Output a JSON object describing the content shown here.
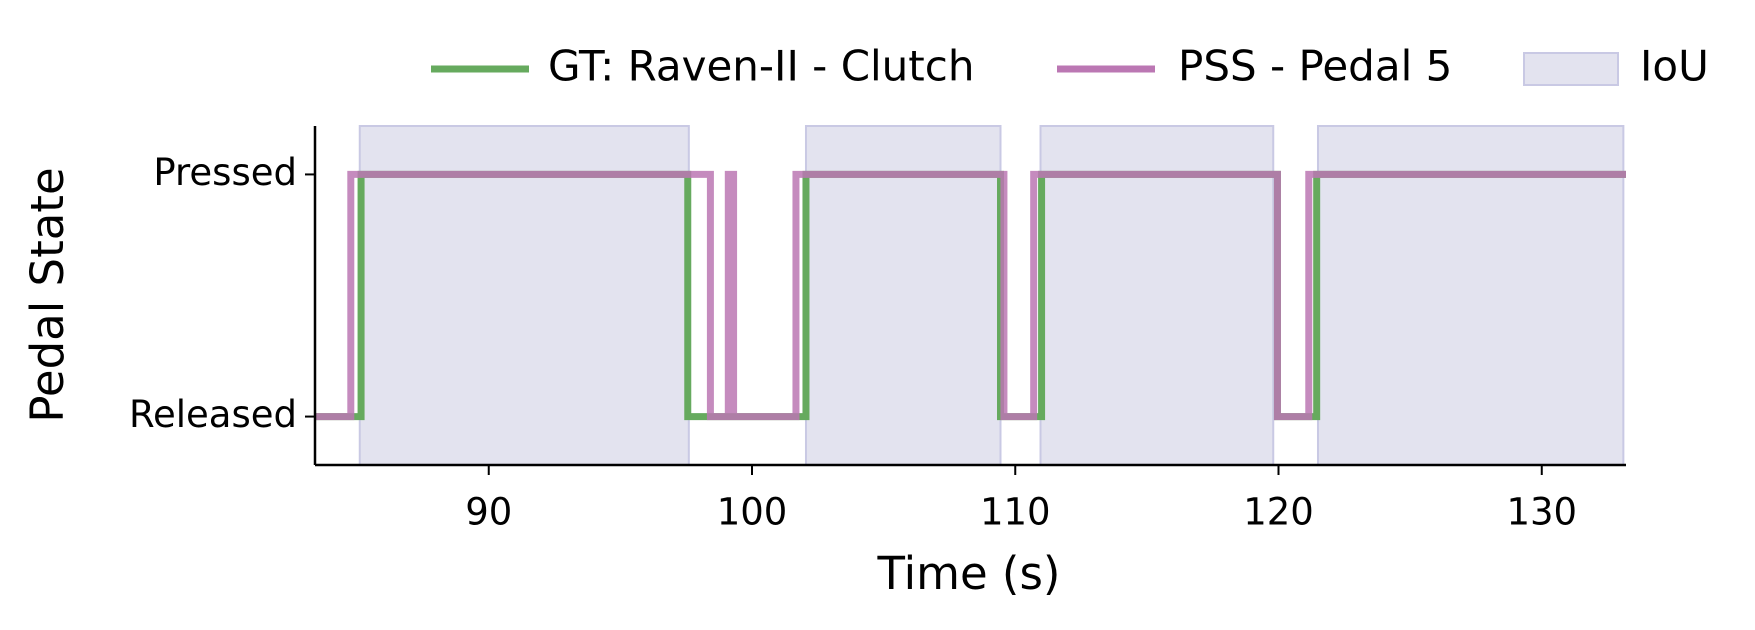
{
  "chart_data": {
    "type": "step",
    "xlabel": "Time (s)",
    "ylabel": "Pedal State",
    "xlim": [
      83.4,
      133.2
    ],
    "ylim": [
      -0.2,
      1.2
    ],
    "xticks": [
      90,
      100,
      110,
      120,
      130
    ],
    "yticks": [
      {
        "value": 0,
        "label": "Released"
      },
      {
        "value": 1,
        "label": "Pressed"
      }
    ],
    "legend": "upper right",
    "series": [
      {
        "name": "GT: Raven-II - Clutch",
        "color": "#66aa5e",
        "x": [
          83.4,
          85.15,
          85.15,
          97.56,
          97.56,
          102.05,
          102.05,
          109.44,
          109.44,
          111.0,
          111.0,
          119.96,
          119.96,
          121.45,
          121.45,
          133.2
        ],
        "values": [
          0,
          0,
          1,
          1,
          0,
          0,
          1,
          1,
          0,
          0,
          1,
          1,
          0,
          0,
          1,
          1
        ]
      },
      {
        "name": "PSS - Pedal 5",
        "color": "#bb77b3",
        "x": [
          83.4,
          84.76,
          84.76,
          98.42,
          98.42,
          99.1,
          99.1,
          99.3,
          99.3,
          101.67,
          101.67,
          109.57,
          109.57,
          110.7,
          110.7,
          119.96,
          119.96,
          121.15,
          121.15,
          133.2
        ],
        "values": [
          0,
          0,
          1,
          1,
          0,
          0,
          1,
          1,
          0,
          0,
          1,
          1,
          0,
          0,
          1,
          1,
          0,
          0,
          1,
          1
        ]
      }
    ],
    "iou": {
      "name": "IoU",
      "color": "#e3e3ef",
      "edgecolor": "#c9c9e4",
      "spans": [
        [
          85.1,
          97.6
        ],
        [
          102.05,
          109.44
        ],
        [
          110.96,
          119.8
        ],
        [
          121.5,
          133.1
        ]
      ]
    }
  }
}
